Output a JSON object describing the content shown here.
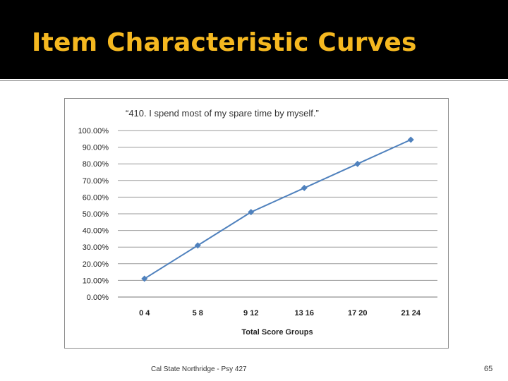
{
  "slide": {
    "title": "Item Characteristic Curves",
    "footer": "Cal State Northridge - Psy 427",
    "page_number": "65"
  },
  "colors": {
    "title_bar": "#000000",
    "title_text": "#f5b820",
    "series_line": "#4f81bd",
    "gridline": "#9a9a9a"
  },
  "chart_data": {
    "type": "line",
    "title": "“410. I spend most of my spare time by myself.”",
    "xlabel": "Total Score Groups",
    "ylabel": "",
    "categories": [
      "0 4",
      "5 8",
      "9 12",
      "13 16",
      "17 20",
      "21 24"
    ],
    "series": [
      {
        "values": [
          0.11,
          0.31,
          0.51,
          0.655,
          0.8,
          0.945
        ]
      }
    ],
    "y_ticks": [
      "0.00%",
      "10.00%",
      "20.00%",
      "30.00%",
      "40.00%",
      "50.00%",
      "60.00%",
      "70.00%",
      "80.00%",
      "90.00%",
      "100.00%"
    ],
    "ylim": [
      0,
      1
    ],
    "grid": true,
    "legend": "none",
    "marker": "diamond"
  }
}
